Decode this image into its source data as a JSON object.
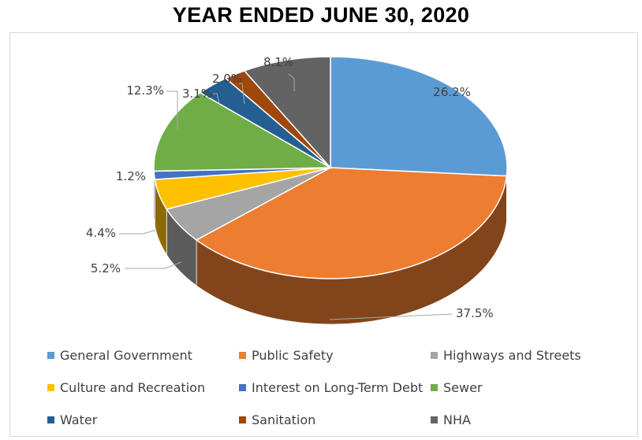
{
  "title": "YEAR ENDED JUNE 30, 2020",
  "chart_data": {
    "type": "pie",
    "title": "YEAR ENDED JUNE 30, 2020",
    "legend_position": "bottom",
    "style": "3d",
    "slices": [
      {
        "name": "General Government",
        "value": 26.2,
        "label": "26.2%",
        "color": "#5B9BD5"
      },
      {
        "name": "Public Safety",
        "value": 37.5,
        "label": "37.5%",
        "color": "#ED7D31"
      },
      {
        "name": "Highways and Streets",
        "value": 5.2,
        "label": "5.2%",
        "color": "#A5A5A5"
      },
      {
        "name": "Culture and Recreation",
        "value": 4.4,
        "label": "4.4%",
        "color": "#FFC000"
      },
      {
        "name": "Interest on Long-Term Debt",
        "value": 1.2,
        "label": "1.2%",
        "color": "#4472C4"
      },
      {
        "name": "Sewer",
        "value": 12.3,
        "label": "12.3%",
        "color": "#70AD47"
      },
      {
        "name": "Water",
        "value": 3.1,
        "label": "3.1%",
        "color": "#255E91"
      },
      {
        "name": "Sanitation",
        "value": 2.0,
        "label": "2.0%",
        "color": "#9E480E"
      },
      {
        "name": "NHA",
        "value": 8.1,
        "label": "8.1%",
        "color": "#636363"
      }
    ]
  }
}
